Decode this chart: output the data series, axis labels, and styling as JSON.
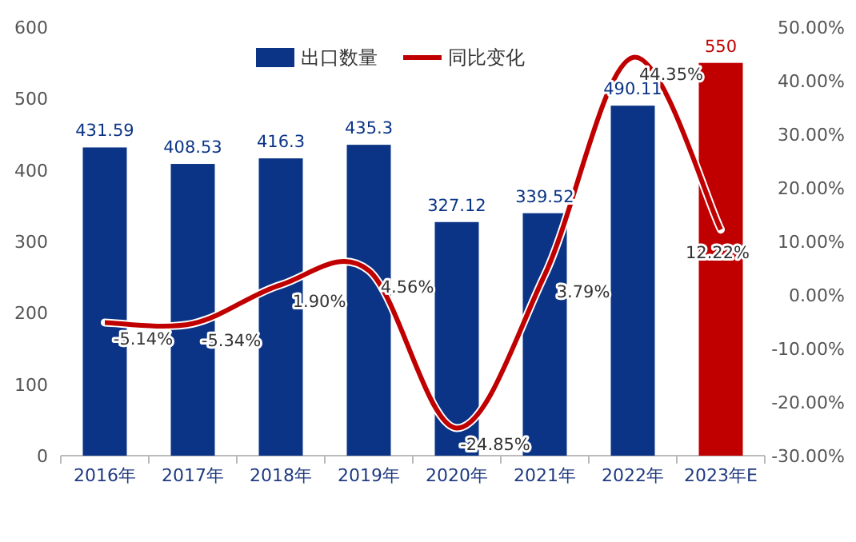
{
  "chart_data": {
    "type": "bar",
    "categories": [
      "2016年",
      "2017年",
      "2018年",
      "2019年",
      "2020年",
      "2021年",
      "2022年",
      "2023年E"
    ],
    "series": [
      {
        "name": "出口数量",
        "colors": [
          "#0b3486",
          "#0b3486",
          "#0b3486",
          "#0b3486",
          "#0b3486",
          "#0b3486",
          "#0b3486",
          "#c00000"
        ],
        "values": [
          431.59,
          408.53,
          416.3,
          435.3,
          327.12,
          339.52,
          490.11,
          550
        ],
        "value_labels": [
          "431.59",
          "408.53",
          "416.3",
          "435.3",
          "327.12",
          "339.52",
          "490.11",
          "550"
        ]
      },
      {
        "name": "同比变化",
        "type": "line",
        "axis": "y2",
        "color": "#c00000",
        "values": [
          -5.14,
          -5.34,
          1.9,
          4.56,
          -24.85,
          3.79,
          44.35,
          12.22
        ],
        "value_labels": [
          "-5.14%",
          "-5.34%",
          "1.90%",
          "4.56%",
          "-24.85%",
          "3.79%",
          "44.35%",
          "12.22%"
        ]
      }
    ],
    "ylim": [
      0,
      600
    ],
    "yticks": [
      0,
      100,
      200,
      300,
      400,
      500,
      600
    ],
    "y2lim": [
      -30,
      50
    ],
    "y2ticks": [
      {
        "value": -30,
        "label": "-30.00%"
      },
      {
        "value": -20,
        "label": "-20.00%"
      },
      {
        "value": -10,
        "label": "-10.00%"
      },
      {
        "value": 0,
        "label": "0.00%"
      },
      {
        "value": 10,
        "label": "10.00%"
      },
      {
        "value": 20,
        "label": "20.00%"
      },
      {
        "value": 30,
        "label": "30.00%"
      },
      {
        "value": 40,
        "label": "40.00%"
      },
      {
        "value": 50,
        "label": "50.00%"
      }
    ],
    "legend": "top",
    "grid": false
  }
}
